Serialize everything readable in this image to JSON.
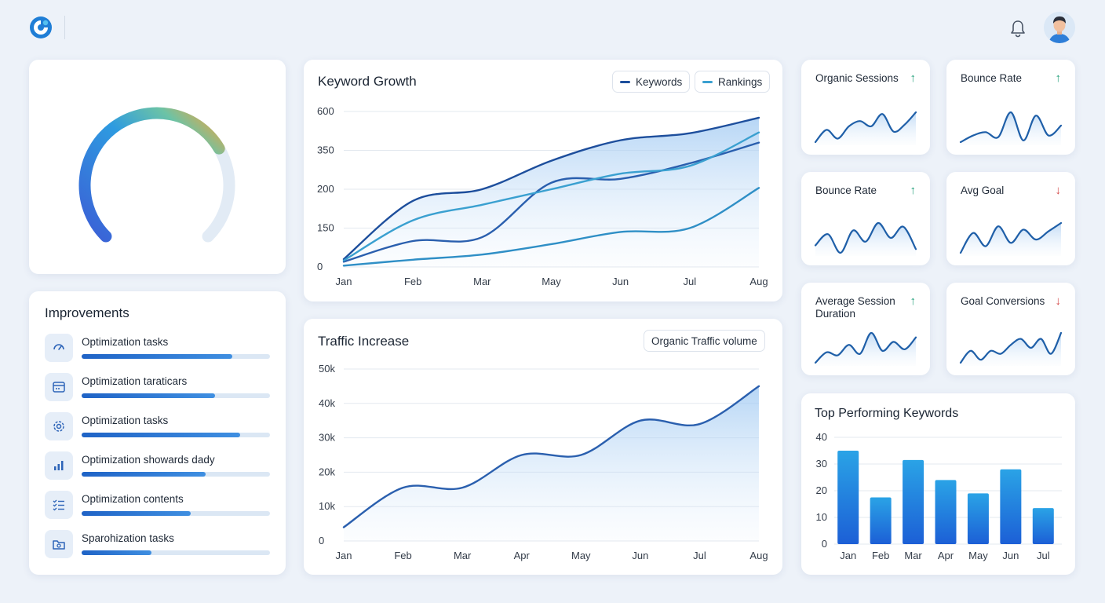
{
  "header": {
    "logo_icon": "app-logo-icon",
    "notification_icon": "bell-icon",
    "avatar_icon": "user-avatar"
  },
  "gauge": {
    "value_fraction": 0.72,
    "colors": [
      "#3b5fd6",
      "#2e9be0",
      "#f3a33a",
      "#e2ebf5"
    ]
  },
  "improvements": {
    "title": "Improvements",
    "items": [
      {
        "label": "Optimization tasks",
        "icon": "gauge-icon",
        "progress": 0.8
      },
      {
        "label": "Optimization taraticars",
        "icon": "browser-window-icon",
        "progress": 0.71
      },
      {
        "label": "Optimization tasks",
        "icon": "gear-icon",
        "progress": 0.84
      },
      {
        "label": "Optimization showards dady",
        "icon": "bar-chart-icon",
        "progress": 0.66
      },
      {
        "label": "Optimization contents",
        "icon": "checklist-icon",
        "progress": 0.58
      },
      {
        "label": "Sparohization tasks",
        "icon": "folder-icon",
        "progress": 0.37
      }
    ]
  },
  "keyword_growth": {
    "title": "Keyword Growth",
    "legend": [
      {
        "label": "Keywords",
        "color": "#1d4e9c"
      },
      {
        "label": "Rankings",
        "color": "#3aa0d0"
      }
    ]
  },
  "traffic": {
    "title": "Traffic Increase",
    "filter_label": "Organic Traffic volume"
  },
  "kpis": [
    {
      "title": "Organic Sessions",
      "trend": "up"
    },
    {
      "title": "Bounce Rate",
      "trend": "up"
    },
    {
      "title": "Bounce Rate",
      "trend": "up"
    },
    {
      "title": "Avg Goal",
      "trend": "down"
    },
    {
      "title": "Average Session Duration",
      "trend": "up"
    },
    {
      "title": "Goal Conversions",
      "trend": "down"
    }
  ],
  "top_keywords": {
    "title": "Top Performing Keywords"
  },
  "colors": {
    "up": "#1e9e78",
    "down": "#d44848",
    "line_dark": "#1d4e9c",
    "line_mid": "#2a5fae",
    "line_light": "#3aa0d0",
    "bar_top": "#2aa3e6",
    "bar_bottom": "#1c5fd6"
  },
  "chart_data": [
    {
      "type": "line",
      "title": "Keyword Growth",
      "categories": [
        "Jan",
        "Feb",
        "Mar",
        "May",
        "Jun",
        "Jul",
        "Aug"
      ],
      "y_ticks": [
        "0",
        "150",
        "200",
        "350",
        "600"
      ],
      "ylim": [
        0,
        600
      ],
      "grid": true,
      "legend_position": "top-right",
      "series": [
        {
          "name": "Keywords",
          "values": [
            30,
            185,
            200,
            310,
            415,
            460,
            560
          ],
          "color": "#1d4e9c",
          "area": true
        },
        {
          "name": "",
          "values": [
            20,
            100,
            115,
            225,
            240,
            300,
            400
          ],
          "color": "#2a5fae"
        },
        {
          "name": "Rankings",
          "values": [
            25,
            160,
            180,
            200,
            260,
            290,
            465
          ],
          "color": "#3aa0d0"
        },
        {
          "name": "",
          "values": [
            5,
            28,
            48,
            88,
            135,
            150,
            205
          ],
          "color": "#2f8fc6"
        }
      ]
    },
    {
      "type": "area",
      "title": "Traffic Increase",
      "categories": [
        "Jan",
        "Feb",
        "Mar",
        "Apr",
        "May",
        "Jun",
        "Jul",
        "Aug"
      ],
      "y_ticks": [
        "0",
        "10k",
        "20k",
        "30k",
        "40k",
        "50k"
      ],
      "ylim": [
        0,
        50000
      ],
      "grid": true,
      "series": [
        {
          "name": "Organic Traffic volume",
          "values": [
            4000,
            15500,
            15500,
            25000,
            25000,
            35000,
            34000,
            45000
          ]
        }
      ]
    },
    {
      "type": "bar",
      "title": "Top Performing Keywords",
      "categories": [
        "Jan",
        "Feb",
        "Mar",
        "Apr",
        "May",
        "Jun",
        "Jul"
      ],
      "values": [
        35,
        17.5,
        31.5,
        24,
        19,
        28,
        13.5
      ],
      "y_ticks": [
        "0",
        "10",
        "20",
        "30",
        "40"
      ],
      "ylim": [
        0,
        40
      ],
      "grid": true
    },
    {
      "type": "line",
      "title": "Organic Sessions",
      "values": [
        4,
        11,
        6,
        13,
        16,
        13,
        20,
        10,
        14,
        21
      ]
    },
    {
      "type": "line",
      "title": "Bounce Rate",
      "values": [
        4,
        8,
        10,
        7,
        22,
        5,
        20,
        8,
        14
      ]
    },
    {
      "type": "line",
      "title": "Bounce Rate",
      "values": [
        10,
        16,
        6,
        18,
        12,
        22,
        14,
        20,
        8
      ]
    },
    {
      "type": "line",
      "title": "Avg Goal",
      "values": [
        4,
        16,
        8,
        20,
        10,
        18,
        12,
        17,
        22
      ]
    },
    {
      "type": "line",
      "title": "Average Session Duration",
      "values": [
        4,
        11,
        9,
        16,
        10,
        24,
        12,
        18,
        13,
        21
      ]
    },
    {
      "type": "line",
      "title": "Goal Conversions",
      "values": [
        4,
        12,
        6,
        12,
        10,
        16,
        20,
        14,
        20,
        10,
        24
      ]
    }
  ]
}
